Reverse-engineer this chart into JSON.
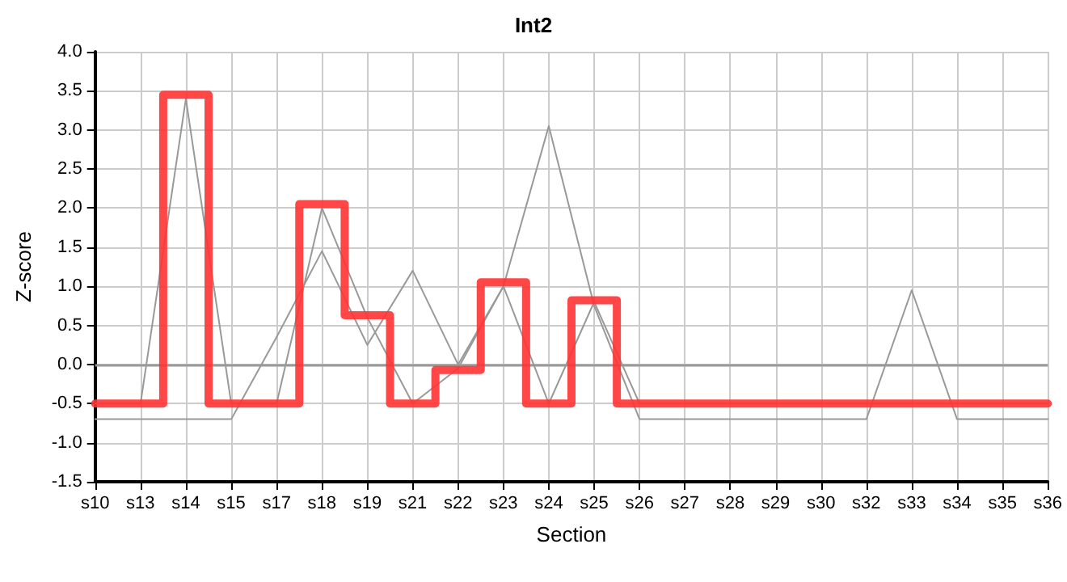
{
  "chart_data": {
    "type": "line",
    "title": "Int2",
    "xlabel": "Section",
    "ylabel": "Z-score",
    "categories": [
      "s10",
      "s13",
      "s14",
      "s15",
      "s17",
      "s18",
      "s19",
      "s21",
      "s22",
      "s23",
      "s24",
      "s25",
      "s26",
      "s27",
      "s28",
      "s29",
      "s30",
      "s32",
      "s33",
      "s34",
      "s35",
      "s36"
    ],
    "series": [
      {
        "color": "#999999",
        "values": [
          -0.7,
          -0.7,
          -0.7,
          -0.7,
          0.35,
          1.45,
          0.25,
          1.2,
          0.0,
          1.0,
          3.05,
          0.75,
          -0.7,
          -0.7,
          -0.7,
          -0.7,
          -0.7,
          -0.7,
          0.95,
          -0.7,
          -0.7,
          -0.7
        ]
      },
      {
        "color": "#999999",
        "values": [
          -0.5,
          -0.5,
          3.4,
          -0.5,
          -0.5,
          2.0,
          0.6,
          -0.5,
          -0.05,
          1.0,
          -0.5,
          0.8,
          -0.5,
          -0.5,
          -0.5,
          -0.5,
          -0.5,
          -0.5,
          -0.5,
          -0.5,
          -0.5,
          -0.5
        ]
      },
      {
        "type": "step",
        "color": "#ff3333",
        "values": [
          -0.5,
          -0.5,
          3.45,
          -0.5,
          -0.5,
          2.05,
          0.63,
          -0.5,
          -0.07,
          1.05,
          -0.5,
          0.82,
          -0.5,
          -0.5,
          -0.5,
          -0.5,
          -0.5,
          -0.5,
          -0.5,
          -0.5,
          -0.5,
          -0.5
        ]
      }
    ],
    "ylim": [
      -1.5,
      4.0
    ],
    "yticks": [
      {
        "value": -1.5,
        "label": "-1.5"
      },
      {
        "value": -1,
        "label": "-1.0"
      },
      {
        "value": -0.5,
        "label": "-0.5"
      },
      {
        "value": 0,
        "label": "0.0"
      },
      {
        "value": 0.5,
        "label": "0.5"
      },
      {
        "value": 1,
        "label": "1.0"
      },
      {
        "value": 1.5,
        "label": "1.5"
      },
      {
        "value": 2,
        "label": "2.0"
      },
      {
        "value": 2.5,
        "label": "2.5"
      },
      {
        "value": 3,
        "label": "3.0"
      },
      {
        "value": 3.5,
        "label": "3.5"
      },
      {
        "value": 4,
        "label": "4.0"
      }
    ],
    "ref_lines": [
      {
        "axis": "y",
        "value": 0,
        "color": "#999999"
      }
    ],
    "grid": true,
    "marker": "none",
    "line_style": "solid"
  }
}
